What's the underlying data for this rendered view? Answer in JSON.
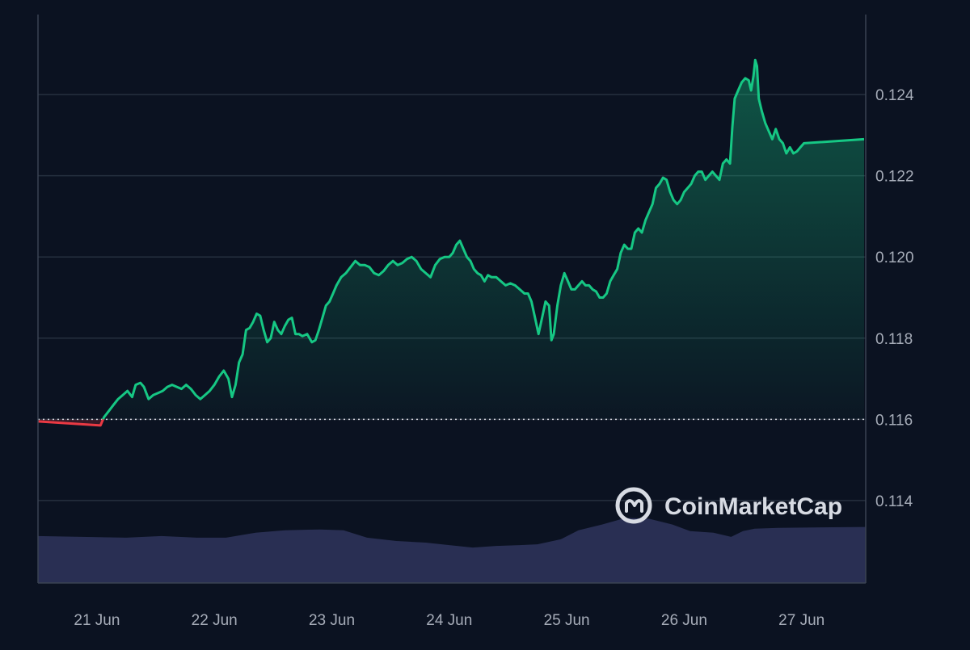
{
  "chart_data": {
    "type": "area",
    "title": "",
    "xlabel": "",
    "ylabel": "",
    "x_ticks": [
      "21 Jun",
      "22 Jun",
      "23 Jun",
      "24 Jun",
      "25 Jun",
      "26 Jun",
      "27 Jun"
    ],
    "y_ticks": [
      "0.114",
      "0.116",
      "0.118",
      "0.120",
      "0.122",
      "0.124"
    ],
    "ylim": [
      0.11197,
      0.12597
    ],
    "xlim": [
      0,
      7.05
    ],
    "baseline": 0.116,
    "grid": true,
    "y_axis_position": "right",
    "colors": {
      "background": "#0b1221",
      "grid": "#26303f",
      "axis": "#3a4352",
      "tick_text": "#a6acb8",
      "up_line": "#16c784",
      "down_line": "#ea3943",
      "volume": "#2b3256",
      "watermark": "#d7dbe3"
    },
    "series": [
      {
        "values": [
          [
            0.0,
            0.11595
          ],
          [
            0.03,
            0.11585
          ],
          [
            0.06,
            0.11605
          ],
          [
            0.1,
            0.1162
          ],
          [
            0.14,
            0.11635
          ],
          [
            0.18,
            0.1165
          ],
          [
            0.22,
            0.1166
          ],
          [
            0.26,
            0.1167
          ],
          [
            0.3,
            0.11655
          ],
          [
            0.33,
            0.11685
          ],
          [
            0.37,
            0.1169
          ],
          [
            0.4,
            0.1168
          ],
          [
            0.44,
            0.1165
          ],
          [
            0.48,
            0.1166
          ],
          [
            0.52,
            0.11665
          ],
          [
            0.56,
            0.1167
          ],
          [
            0.6,
            0.1168
          ],
          [
            0.64,
            0.11685
          ],
          [
            0.68,
            0.1168
          ],
          [
            0.72,
            0.11675
          ],
          [
            0.76,
            0.11685
          ],
          [
            0.8,
            0.11675
          ],
          [
            0.84,
            0.1166
          ],
          [
            0.88,
            0.1165
          ],
          [
            0.92,
            0.1166
          ],
          [
            0.96,
            0.1167
          ],
          [
            1.0,
            0.11685
          ],
          [
            1.04,
            0.11705
          ],
          [
            1.08,
            0.1172
          ],
          [
            1.12,
            0.117
          ],
          [
            1.15,
            0.11655
          ],
          [
            1.18,
            0.11685
          ],
          [
            1.21,
            0.1174
          ],
          [
            1.24,
            0.1176
          ],
          [
            1.27,
            0.1182
          ],
          [
            1.3,
            0.11825
          ],
          [
            1.33,
            0.1184
          ],
          [
            1.36,
            0.1186
          ],
          [
            1.39,
            0.11855
          ],
          [
            1.42,
            0.1182
          ],
          [
            1.45,
            0.1179
          ],
          [
            1.48,
            0.118
          ],
          [
            1.51,
            0.1184
          ],
          [
            1.54,
            0.1182
          ],
          [
            1.57,
            0.1181
          ],
          [
            1.6,
            0.1183
          ],
          [
            1.63,
            0.11845
          ],
          [
            1.66,
            0.1185
          ],
          [
            1.69,
            0.1181
          ],
          [
            1.72,
            0.1181
          ],
          [
            1.75,
            0.11805
          ],
          [
            1.79,
            0.1181
          ],
          [
            1.83,
            0.1179
          ],
          [
            1.86,
            0.11795
          ],
          [
            1.89,
            0.1182
          ],
          [
            1.92,
            0.1185
          ],
          [
            1.95,
            0.1188
          ],
          [
            1.98,
            0.1189
          ],
          [
            2.01,
            0.1191
          ],
          [
            2.04,
            0.1193
          ],
          [
            2.08,
            0.1195
          ],
          [
            2.12,
            0.1196
          ],
          [
            2.16,
            0.11975
          ],
          [
            2.2,
            0.1199
          ],
          [
            2.24,
            0.1198
          ],
          [
            2.28,
            0.1198
          ],
          [
            2.32,
            0.11975
          ],
          [
            2.36,
            0.1196
          ],
          [
            2.4,
            0.11955
          ],
          [
            2.44,
            0.11965
          ],
          [
            2.48,
            0.1198
          ],
          [
            2.52,
            0.1199
          ],
          [
            2.56,
            0.1198
          ],
          [
            2.6,
            0.11985
          ],
          [
            2.64,
            0.11995
          ],
          [
            2.68,
            0.12
          ],
          [
            2.72,
            0.1199
          ],
          [
            2.76,
            0.1197
          ],
          [
            2.8,
            0.1196
          ],
          [
            2.84,
            0.1195
          ],
          [
            2.88,
            0.1198
          ],
          [
            2.92,
            0.11995
          ],
          [
            2.96,
            0.12
          ],
          [
            3.0,
            0.12
          ],
          [
            3.03,
            0.1201
          ],
          [
            3.06,
            0.1203
          ],
          [
            3.09,
            0.1204
          ],
          [
            3.12,
            0.1202
          ],
          [
            3.15,
            0.12
          ],
          [
            3.18,
            0.1199
          ],
          [
            3.21,
            0.1197
          ],
          [
            3.24,
            0.1196
          ],
          [
            3.27,
            0.11955
          ],
          [
            3.3,
            0.1194
          ],
          [
            3.33,
            0.11955
          ],
          [
            3.36,
            0.1195
          ],
          [
            3.4,
            0.1195
          ],
          [
            3.44,
            0.1194
          ],
          [
            3.48,
            0.1193
          ],
          [
            3.52,
            0.11935
          ],
          [
            3.56,
            0.1193
          ],
          [
            3.6,
            0.1192
          ],
          [
            3.64,
            0.1191
          ],
          [
            3.67,
            0.1191
          ],
          [
            3.7,
            0.1189
          ],
          [
            3.73,
            0.1185
          ],
          [
            3.76,
            0.1181
          ],
          [
            3.79,
            0.1185
          ],
          [
            3.82,
            0.1189
          ],
          [
            3.85,
            0.1188
          ],
          [
            3.87,
            0.11795
          ],
          [
            3.89,
            0.1181
          ],
          [
            3.92,
            0.1188
          ],
          [
            3.95,
            0.1193
          ],
          [
            3.98,
            0.1196
          ],
          [
            4.01,
            0.1194
          ],
          [
            4.04,
            0.1192
          ],
          [
            4.07,
            0.1192
          ],
          [
            4.1,
            0.1193
          ],
          [
            4.13,
            0.1194
          ],
          [
            4.16,
            0.1193
          ],
          [
            4.19,
            0.1193
          ],
          [
            4.22,
            0.1192
          ],
          [
            4.25,
            0.11915
          ],
          [
            4.28,
            0.119
          ],
          [
            4.31,
            0.119
          ],
          [
            4.34,
            0.1191
          ],
          [
            4.37,
            0.1194
          ],
          [
            4.4,
            0.11955
          ],
          [
            4.43,
            0.1197
          ],
          [
            4.46,
            0.1201
          ],
          [
            4.49,
            0.1203
          ],
          [
            4.52,
            0.1202
          ],
          [
            4.55,
            0.1202
          ],
          [
            4.58,
            0.1206
          ],
          [
            4.61,
            0.1207
          ],
          [
            4.64,
            0.1206
          ],
          [
            4.67,
            0.1209
          ],
          [
            4.7,
            0.1211
          ],
          [
            4.73,
            0.1213
          ],
          [
            4.76,
            0.1217
          ],
          [
            4.79,
            0.1218
          ],
          [
            4.82,
            0.12195
          ],
          [
            4.85,
            0.1219
          ],
          [
            4.88,
            0.1216
          ],
          [
            4.91,
            0.1214
          ],
          [
            4.94,
            0.1213
          ],
          [
            4.97,
            0.1214
          ],
          [
            5.0,
            0.1216
          ],
          [
            5.03,
            0.1217
          ],
          [
            5.06,
            0.1218
          ],
          [
            5.09,
            0.122
          ],
          [
            5.12,
            0.1221
          ],
          [
            5.15,
            0.1221
          ],
          [
            5.18,
            0.1219
          ],
          [
            5.21,
            0.122
          ],
          [
            5.24,
            0.1221
          ],
          [
            5.27,
            0.122
          ],
          [
            5.3,
            0.1219
          ],
          [
            5.33,
            0.1223
          ],
          [
            5.36,
            0.1224
          ],
          [
            5.39,
            0.1223
          ],
          [
            5.41,
            0.1232
          ],
          [
            5.43,
            0.1239
          ],
          [
            5.46,
            0.1241
          ],
          [
            5.49,
            0.1243
          ],
          [
            5.52,
            0.1244
          ],
          [
            5.55,
            0.12435
          ],
          [
            5.57,
            0.1241
          ],
          [
            5.59,
            0.12445
          ],
          [
            5.605,
            0.12485
          ],
          [
            5.62,
            0.1247
          ],
          [
            5.635,
            0.1239
          ],
          [
            5.66,
            0.1236
          ],
          [
            5.69,
            0.1233
          ],
          [
            5.72,
            0.1231
          ],
          [
            5.75,
            0.1229
          ],
          [
            5.78,
            0.12315
          ],
          [
            5.81,
            0.1229
          ],
          [
            5.84,
            0.1228
          ],
          [
            5.87,
            0.12255
          ],
          [
            5.9,
            0.1227
          ],
          [
            5.93,
            0.12255
          ],
          [
            5.96,
            0.1226
          ],
          [
            5.99,
            0.1227
          ],
          [
            6.02,
            0.1228
          ],
          [
            6.05,
            0.1229
          ]
        ]
      }
    ],
    "volume": {
      "values": [
        [
          0.0,
          0.57
        ],
        [
          0.25,
          0.55
        ],
        [
          0.55,
          0.57
        ],
        [
          0.85,
          0.55
        ],
        [
          1.1,
          0.55
        ],
        [
          1.35,
          0.61
        ],
        [
          1.6,
          0.64
        ],
        [
          1.9,
          0.65
        ],
        [
          2.1,
          0.64
        ],
        [
          2.3,
          0.55
        ],
        [
          2.55,
          0.51
        ],
        [
          2.8,
          0.49
        ],
        [
          3.0,
          0.46
        ],
        [
          3.2,
          0.43
        ],
        [
          3.4,
          0.45
        ],
        [
          3.6,
          0.46
        ],
        [
          3.75,
          0.47
        ],
        [
          3.95,
          0.53
        ],
        [
          4.1,
          0.64
        ],
        [
          4.3,
          0.71
        ],
        [
          4.5,
          0.79
        ],
        [
          4.7,
          0.78
        ],
        [
          4.9,
          0.71
        ],
        [
          5.05,
          0.63
        ],
        [
          5.25,
          0.61
        ],
        [
          5.4,
          0.56
        ],
        [
          5.5,
          0.63
        ],
        [
          5.6,
          0.66
        ],
        [
          5.8,
          0.67
        ],
        [
          6.05,
          0.68
        ]
      ]
    },
    "watermark": "CoinMarketCap"
  }
}
